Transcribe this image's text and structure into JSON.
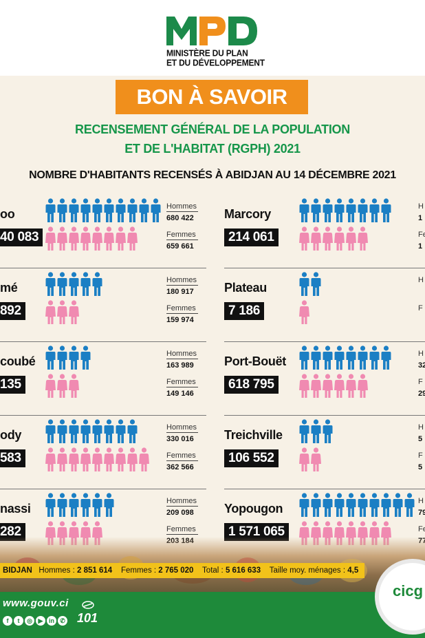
{
  "header": {
    "logo_text": "MPD",
    "ministry_line1": "MINISTÈRE DU PLAN",
    "ministry_line2": "ET DU DÉVELOPPEMENT",
    "banner": "BON À SAVOIR",
    "subtitle_line1": "RECENSEMENT GÉNÉRAL DE LA POPULATION",
    "subtitle_line2": "ET DE L'HABITAT (RGPH) 2021",
    "headline": "NOMBRE D'HABITANTS RECENSÉS À ABIDJAN AU 14 DÉCEMBRE 2021"
  },
  "labels": {
    "men": "Hommes",
    "women": "Femmes"
  },
  "colors": {
    "men": "#1b7fc4",
    "women": "#f08ab1",
    "accent": "#f08f1c",
    "green": "#16964a"
  },
  "left_communes": [
    {
      "name": "oo",
      "total": "40 083",
      "men": "680 422",
      "women": "659 661",
      "men_icons": 10,
      "women_icons": 8
    },
    {
      "name": "mé",
      "total": "892",
      "men": "180 917",
      "women": "159 974",
      "men_icons": 5,
      "women_icons": 3
    },
    {
      "name": "coubé",
      "total": "135",
      "men": "163 989",
      "women": "149 146",
      "men_icons": 4,
      "women_icons": 3
    },
    {
      "name": "ody",
      "total": "583",
      "men": "330 016",
      "women": "362 566",
      "men_icons": 8,
      "women_icons": 9
    },
    {
      "name": "nassi",
      "total": "282",
      "men": "209 098",
      "women": "203 184",
      "men_icons": 6,
      "women_icons": 5
    }
  ],
  "right_communes": [
    {
      "name": "Marcory",
      "total": "214 061",
      "men_prefix": "H",
      "women_prefix": "Fe",
      "men_frag": "1",
      "women_frag": "1",
      "men_icons": 8,
      "women_icons": 6
    },
    {
      "name": "Plateau",
      "total": "7 186",
      "men_prefix": "H",
      "women_prefix": "F",
      "men_frag": "",
      "women_frag": "",
      "men_icons": 2,
      "women_icons": 1
    },
    {
      "name": "Port-Bouët",
      "total": "618 795",
      "men_prefix": "H",
      "women_prefix": "F",
      "men_frag": "32",
      "women_frag": "29",
      "men_icons": 8,
      "women_icons": 6
    },
    {
      "name": "Treichville",
      "total": "106 552",
      "men_prefix": "H",
      "women_prefix": "F",
      "men_frag": "5",
      "women_frag": "5",
      "men_icons": 3,
      "women_icons": 2
    },
    {
      "name": "Yopougon",
      "total": "1 571 065",
      "men_prefix": "H",
      "women_prefix": "Fe",
      "men_frag": "79",
      "women_frag": "77",
      "men_icons": 10,
      "women_icons": 8
    }
  ],
  "summary": {
    "place": "BIDJAN",
    "men_label": "Hommes :",
    "men_value": "2 851 614",
    "women_label": "Femmes :",
    "women_value": "2 765 020",
    "total_label": "Total :",
    "total_value": "5 616 633",
    "household_label": "Taille moy. ménages :",
    "household_value": "4,5"
  },
  "footer": {
    "website": "www.gouv.ci",
    "phone": "101",
    "partner_logo": "cicg"
  }
}
